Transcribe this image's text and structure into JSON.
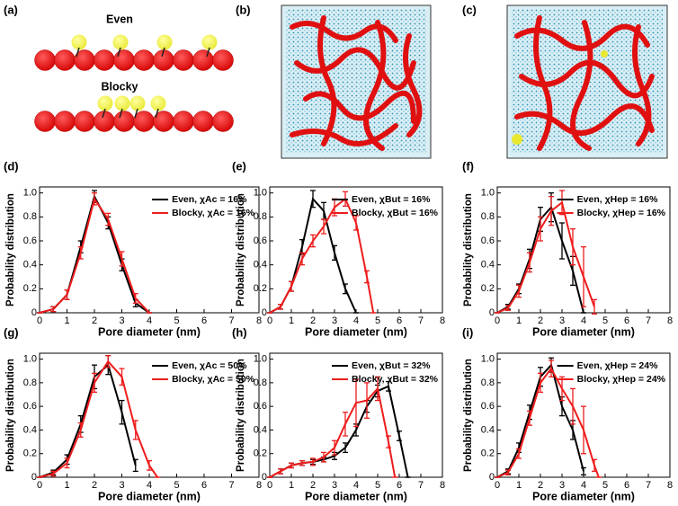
{
  "figure": {
    "a": {
      "label": "(a)",
      "even": "Even",
      "blocky": "Blocky"
    },
    "b": {
      "label": "(b)"
    },
    "c": {
      "label": "(c)"
    }
  },
  "chart_data": [
    {
      "type": "line",
      "label": "(d)",
      "xlabel": "Pore diameter (nm)",
      "ylabel": "Probability distribution",
      "xlim": [
        0,
        8
      ],
      "ylim": [
        0,
        1.05
      ],
      "xticks": [
        0,
        1,
        2,
        3,
        4,
        5,
        6,
        7,
        8
      ],
      "yticks": [
        0,
        0.2,
        0.4,
        0.6,
        0.8,
        {
          "value": 1,
          "label": "1.0"
        }
      ],
      "legend": "upper right",
      "series": [
        {
          "name": "Even, χAc = 16%",
          "color": "#000000",
          "x": [
            0,
            0.5,
            1,
            1.5,
            2,
            2.5,
            3,
            3.5,
            4
          ],
          "values": [
            0,
            0.03,
            0.15,
            0.55,
            0.97,
            0.75,
            0.4,
            0.08,
            0
          ],
          "errors": [
            0,
            0.02,
            0.04,
            0.05,
            0.05,
            0.05,
            0.05,
            0.03,
            0
          ]
        },
        {
          "name": "Blocky, χAc = 16%",
          "color": "#ee1c1c",
          "x": [
            0,
            0.5,
            1,
            1.5,
            2,
            2.5,
            3,
            3.5,
            4
          ],
          "values": [
            0,
            0.03,
            0.15,
            0.5,
            0.95,
            0.78,
            0.45,
            0.12,
            0
          ],
          "errors": [
            0,
            0.02,
            0.04,
            0.05,
            0.05,
            0.05,
            0.06,
            0.04,
            0
          ]
        }
      ]
    },
    {
      "type": "line",
      "label": "(e)",
      "xlabel": "Pore diameter (nm)",
      "ylabel": "Probability distribution",
      "xlim": [
        0,
        8
      ],
      "ylim": [
        0,
        1.05
      ],
      "xticks": [
        0,
        1,
        2,
        3,
        4,
        5,
        6,
        7,
        8
      ],
      "yticks": [
        0,
        0.2,
        0.4,
        0.6,
        0.8,
        {
          "value": 1,
          "label": "1.0"
        }
      ],
      "legend": "upper right",
      "series": [
        {
          "name": "Even, χBut = 16%",
          "color": "#000000",
          "x": [
            0,
            0.5,
            1,
            1.5,
            2,
            2.5,
            3,
            3.5,
            4
          ],
          "values": [
            0,
            0.05,
            0.22,
            0.55,
            0.95,
            0.85,
            0.5,
            0.2,
            0
          ],
          "errors": [
            0,
            0.02,
            0.04,
            0.06,
            0.07,
            0.07,
            0.06,
            0.04,
            0
          ]
        },
        {
          "name": "Blocky, χBut = 16%",
          "color": "#ee1c1c",
          "x": [
            0,
            0.5,
            1,
            1.5,
            2,
            2.5,
            3,
            3.5,
            4,
            4.5,
            4.8
          ],
          "values": [
            0,
            0.05,
            0.22,
            0.45,
            0.6,
            0.72,
            0.88,
            0.95,
            0.75,
            0.3,
            0
          ],
          "errors": [
            0,
            0.02,
            0.04,
            0.05,
            0.05,
            0.06,
            0.07,
            0.06,
            0.06,
            0.05,
            0
          ]
        }
      ]
    },
    {
      "type": "line",
      "label": "(f)",
      "xlabel": "Pore diameter (nm)",
      "ylabel": "Probability distribution",
      "xlim": [
        0,
        8
      ],
      "ylim": [
        0,
        1.05
      ],
      "xticks": [
        0,
        1,
        2,
        3,
        4,
        5,
        6,
        7,
        8
      ],
      "yticks": [
        0,
        0.2,
        0.4,
        0.6,
        0.8,
        {
          "value": 1,
          "label": "1.0"
        }
      ],
      "legend": "upper right",
      "series": [
        {
          "name": "Even, χHep = 16%",
          "color": "#000000",
          "x": [
            0,
            0.5,
            1,
            1.5,
            2,
            2.5,
            3,
            3.5,
            4
          ],
          "values": [
            0,
            0.05,
            0.2,
            0.45,
            0.78,
            0.88,
            0.6,
            0.35,
            0
          ],
          "errors": [
            0,
            0.02,
            0.04,
            0.08,
            0.1,
            0.12,
            0.15,
            0.12,
            0
          ]
        },
        {
          "name": "Blocky, χHep = 16%",
          "color": "#ee1c1c",
          "x": [
            0,
            0.5,
            1,
            1.5,
            2,
            2.5,
            3,
            3.5,
            4,
            4.5
          ],
          "values": [
            0,
            0.04,
            0.18,
            0.42,
            0.7,
            0.85,
            0.92,
            0.55,
            0.3,
            0.05
          ],
          "errors": [
            0,
            0.02,
            0.05,
            0.08,
            0.1,
            0.12,
            0.1,
            0.15,
            0.25,
            0.06
          ]
        }
      ]
    },
    {
      "type": "line",
      "label": "(g)",
      "xlabel": "Pore diameter (nm)",
      "ylabel": "Probability distribution",
      "xlim": [
        0,
        8
      ],
      "ylim": [
        0,
        1.05
      ],
      "xticks": [
        0,
        1,
        2,
        3,
        4,
        5,
        6,
        7,
        8
      ],
      "yticks": [
        0,
        0.2,
        0.4,
        0.6,
        0.8,
        {
          "value": 1,
          "label": "1.0"
        }
      ],
      "legend": "upper right",
      "series": [
        {
          "name": "Even, χAc = 50%",
          "color": "#000000",
          "x": [
            0,
            0.5,
            1,
            1.5,
            2,
            2.5,
            3,
            3.5
          ],
          "values": [
            0,
            0.04,
            0.15,
            0.45,
            0.85,
            0.95,
            0.55,
            0.1
          ],
          "errors": [
            0,
            0.02,
            0.04,
            0.07,
            0.1,
            0.08,
            0.1,
            0.05
          ]
        },
        {
          "name": "Blocky, χAc = 50%",
          "color": "#ee1c1c",
          "x": [
            0,
            0.5,
            1,
            1.5,
            2,
            2.5,
            3,
            3.5,
            4,
            4.3
          ],
          "values": [
            0,
            0.03,
            0.12,
            0.4,
            0.8,
            0.98,
            0.85,
            0.4,
            0.1,
            0
          ],
          "errors": [
            0,
            0.02,
            0.04,
            0.06,
            0.08,
            0.05,
            0.07,
            0.08,
            0.04,
            0
          ]
        }
      ]
    },
    {
      "type": "line",
      "label": "(h)",
      "xlabel": "Pore diameter (nm)",
      "ylabel": "Probability distribution",
      "xlim": [
        0,
        8
      ],
      "ylim": [
        0,
        1.05
      ],
      "xticks": [
        0,
        1,
        2,
        3,
        4,
        5,
        6,
        7,
        8
      ],
      "yticks": [
        0,
        0.2,
        0.4,
        0.6,
        0.8,
        {
          "value": 1,
          "label": "1.0"
        }
      ],
      "legend": "upper right",
      "series": [
        {
          "name": "Even, χBut = 32%",
          "color": "#000000",
          "x": [
            0,
            0.5,
            1,
            1.5,
            2,
            2.5,
            3,
            3.5,
            4,
            4.5,
            5,
            5.5,
            6,
            6.4
          ],
          "values": [
            0,
            0.05,
            0.1,
            0.12,
            0.13,
            0.15,
            0.18,
            0.25,
            0.4,
            0.6,
            0.73,
            0.77,
            0.35,
            0
          ],
          "errors": [
            0,
            0.02,
            0.02,
            0.02,
            0.02,
            0.02,
            0.03,
            0.04,
            0.05,
            0.05,
            0.05,
            0.04,
            0.04,
            0
          ]
        },
        {
          "name": "Blocky, χBut = 32%",
          "color": "#ee1c1c",
          "x": [
            0,
            0.5,
            1,
            1.5,
            2,
            2.5,
            3,
            3.5,
            4,
            4.5,
            5,
            5.5,
            5.8
          ],
          "values": [
            0,
            0.05,
            0.1,
            0.12,
            0.13,
            0.17,
            0.25,
            0.45,
            0.63,
            0.65,
            0.75,
            0.3,
            0
          ],
          "errors": [
            0,
            0.02,
            0.02,
            0.02,
            0.03,
            0.04,
            0.06,
            0.1,
            0.2,
            0.15,
            0.1,
            0.05,
            0
          ]
        }
      ]
    },
    {
      "type": "line",
      "label": "(i)",
      "xlabel": "Pore diameter (nm)",
      "ylabel": "Probability distribution",
      "xlim": [
        0,
        8
      ],
      "ylim": [
        0,
        1.05
      ],
      "xticks": [
        0,
        1,
        2,
        3,
        4,
        5,
        6,
        7,
        8
      ],
      "yticks": [
        0,
        0.2,
        0.4,
        0.6,
        0.8,
        {
          "value": 1,
          "label": "1.0"
        }
      ],
      "legend": "upper right",
      "series": [
        {
          "name": "Even, χHep = 24%",
          "color": "#000000",
          "x": [
            0,
            0.5,
            1,
            1.5,
            2,
            2.5,
            3,
            3.5,
            4
          ],
          "values": [
            0,
            0.05,
            0.25,
            0.55,
            0.85,
            0.95,
            0.6,
            0.4,
            0.05
          ],
          "errors": [
            0,
            0.02,
            0.04,
            0.06,
            0.08,
            0.06,
            0.08,
            0.08,
            0.03
          ]
        },
        {
          "name": "Blocky, χHep = 24%",
          "color": "#ee1c1c",
          "x": [
            0,
            0.5,
            1,
            1.5,
            2,
            2.5,
            3,
            3.5,
            4,
            4.5,
            4.7
          ],
          "values": [
            0,
            0.04,
            0.2,
            0.5,
            0.8,
            0.92,
            0.75,
            0.6,
            0.4,
            0.1,
            0
          ],
          "errors": [
            0,
            0.02,
            0.04,
            0.06,
            0.08,
            0.07,
            0.1,
            0.15,
            0.2,
            0.05,
            0
          ]
        }
      ]
    }
  ]
}
